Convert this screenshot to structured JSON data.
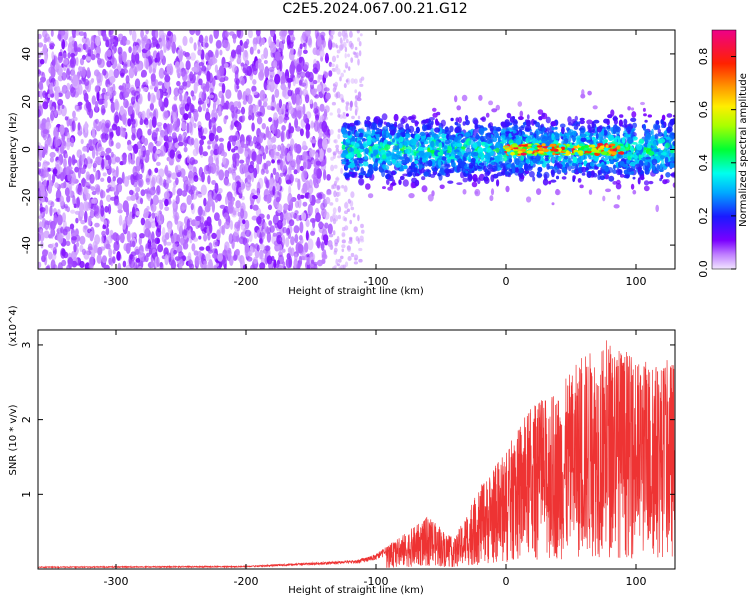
{
  "title": "C2E5.2024.067.00.21.G12",
  "chart_data": [
    {
      "type": "heatmap",
      "xlabel": "Height of straight line (km)",
      "ylabel": "Frequency (Hz)",
      "xlim": [
        -360,
        130
      ],
      "ylim": [
        -50,
        50
      ],
      "xticks": [
        -300,
        -200,
        -100,
        0,
        100
      ],
      "yticks": [
        -40,
        -20,
        0,
        20,
        40
      ],
      "colorbar": {
        "label": "Normalized spectral amplitude",
        "range": [
          0.0,
          0.9
        ],
        "ticks": [
          0.0,
          0.2,
          0.4,
          0.6,
          0.8
        ]
      },
      "regions": [
        {
          "x_range": [
            -360,
            -135
          ],
          "freq_range": [
            -50,
            50
          ],
          "amplitude": 0.05
        },
        {
          "x_range": [
            -135,
            -110
          ],
          "freq_range": [
            -50,
            50
          ],
          "amplitude": 0.02
        },
        {
          "x_range": [
            -125,
            130
          ],
          "freq_center": 0,
          "freq_halfwidth": 10,
          "amplitude": 0.3
        },
        {
          "x_range": [
            0,
            90
          ],
          "freq_center": 0,
          "freq_halfwidth": 2,
          "amplitude": 0.85
        }
      ]
    },
    {
      "type": "line",
      "xlabel": "Height of straight line (km)",
      "ylabel": "SNR (10 * v/v)",
      "y_multiplier": "(x10^4)",
      "xlim": [
        -360,
        130
      ],
      "ylim": [
        0,
        3.2
      ],
      "xticks": [
        -300,
        -200,
        -100,
        0,
        100
      ],
      "yticks": [
        1,
        2,
        3
      ],
      "series": [
        {
          "color": "#ee3333",
          "envelope": [
            {
              "x": -360,
              "y": 0.03
            },
            {
              "x": -200,
              "y": 0.04
            },
            {
              "x": -115,
              "y": 0.12
            },
            {
              "x": -100,
              "y": 0.2
            },
            {
              "x": -80,
              "y": 0.45
            },
            {
              "x": -60,
              "y": 0.7
            },
            {
              "x": -40,
              "y": 0.4
            },
            {
              "x": -20,
              "y": 1.1
            },
            {
              "x": 0,
              "y": 1.6
            },
            {
              "x": 20,
              "y": 2.2
            },
            {
              "x": 40,
              "y": 2.4
            },
            {
              "x": 60,
              "y": 2.9
            },
            {
              "x": 80,
              "y": 3.1
            },
            {
              "x": 100,
              "y": 2.8
            },
            {
              "x": 130,
              "y": 2.8
            }
          ]
        }
      ]
    }
  ],
  "colors": {
    "snr_line": "#ee3333"
  }
}
